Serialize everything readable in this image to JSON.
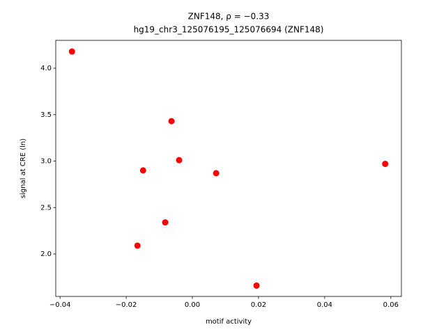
{
  "chart_data": {
    "type": "scatter",
    "title": "ZNF148, ρ = −0.33",
    "subtitle": "hg19_chr3_125076195_125076694 (ZNF148)",
    "x_label": "motif activity",
    "y_label": "signal at CRE (ln)",
    "color": "#ff0000",
    "x": [
      -0.0364,
      -0.0063,
      -0.0149,
      -0.004,
      0.0072,
      0.0583,
      -0.0082,
      -0.0166,
      0.0194
    ],
    "values": [
      4.18,
      3.43,
      2.9,
      3.01,
      2.87,
      2.97,
      2.34,
      2.09,
      1.66
    ],
    "xlim": [
      -0.0413,
      0.0632
    ],
    "ylim": [
      1.543,
      4.3
    ],
    "xticks": [
      {
        "value": -0.04,
        "label": "−0.04"
      },
      {
        "value": -0.02,
        "label": "−0.02"
      },
      {
        "value": 0,
        "label": "0.00"
      },
      {
        "value": 0.02,
        "label": "0.02"
      },
      {
        "value": 0.04,
        "label": "0.04"
      },
      {
        "value": 0.06,
        "label": "0.06"
      }
    ],
    "yticks": [
      {
        "value": 2,
        "label": "2.0"
      },
      {
        "value": 2.5,
        "label": "2.5"
      },
      {
        "value": 3,
        "label": "3.0"
      },
      {
        "value": 3.5,
        "label": "3.5"
      },
      {
        "value": 4,
        "label": "4.0"
      }
    ]
  }
}
